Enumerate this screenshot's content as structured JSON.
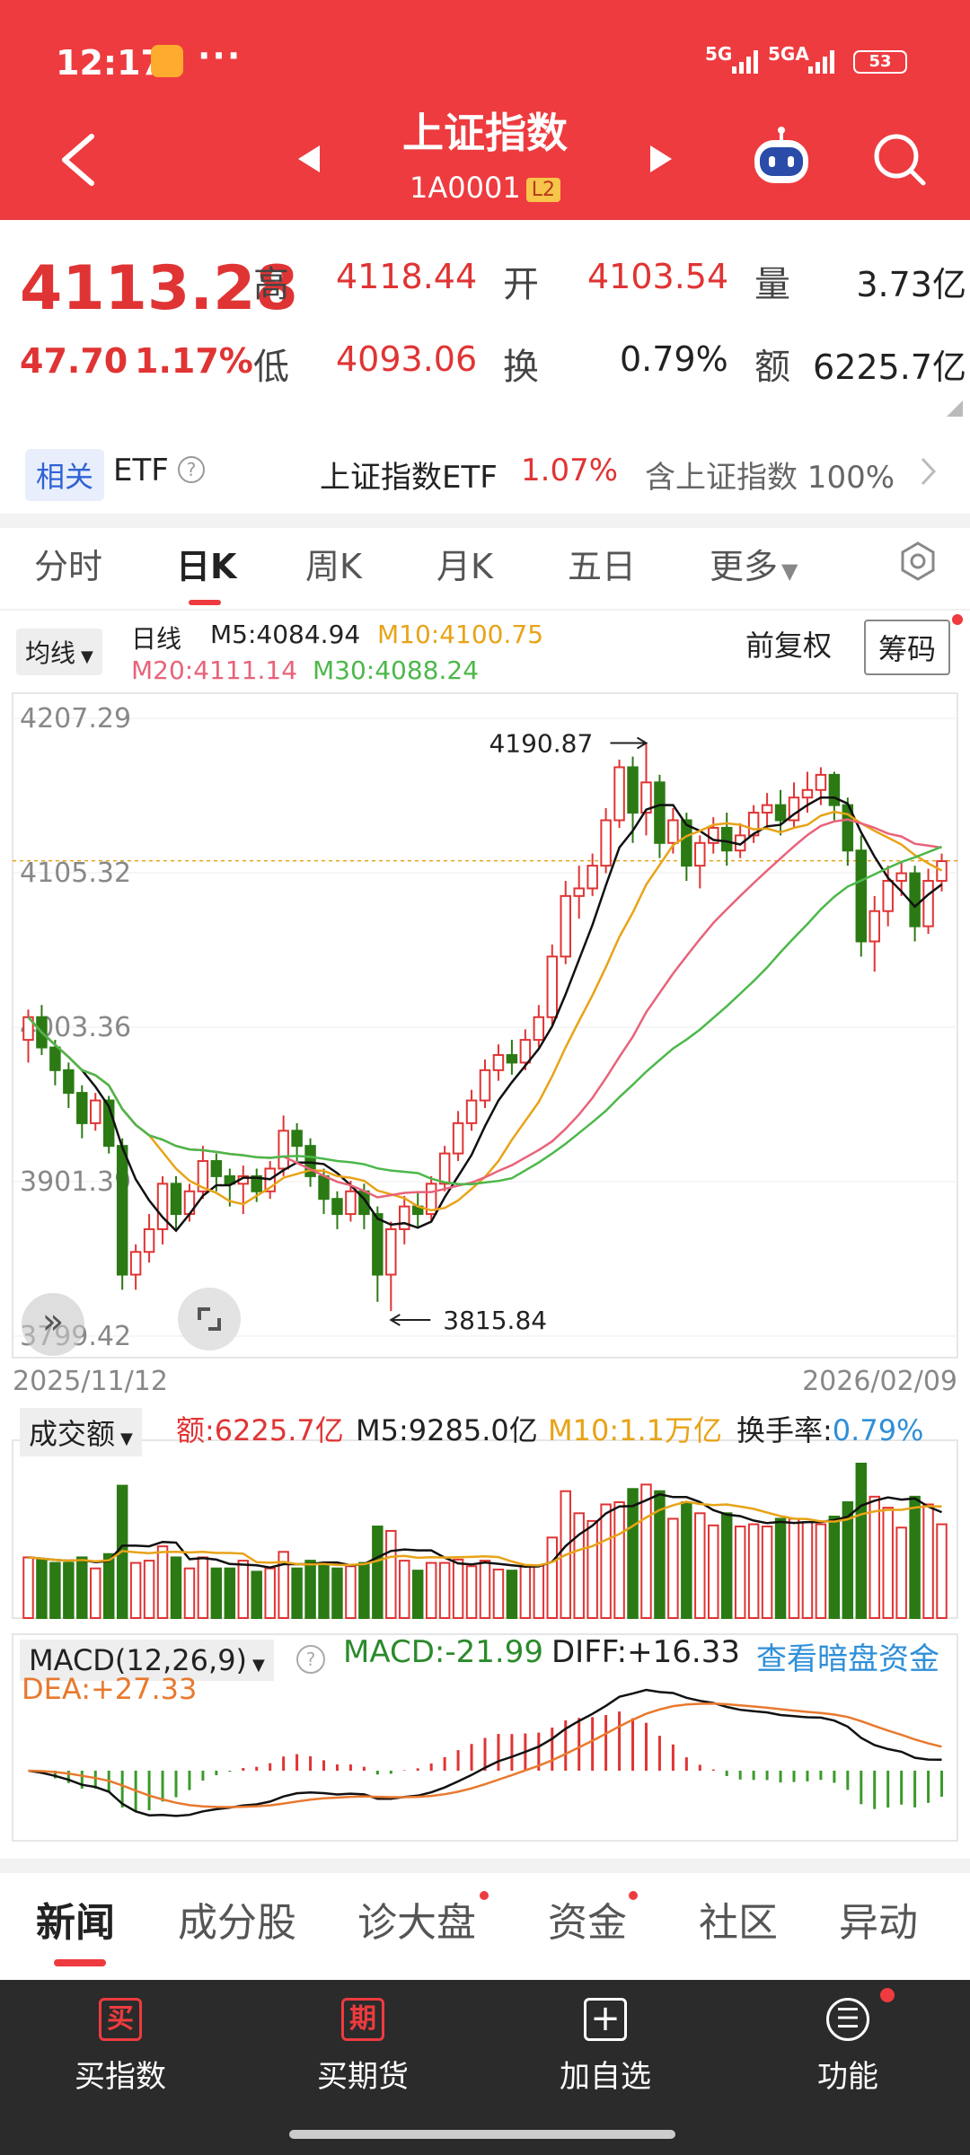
{
  "status": {
    "time": "12:17",
    "dots": "···",
    "net1": "5G",
    "net2": "5GA",
    "battery": "53"
  },
  "header": {
    "title": "上证指数",
    "code": "1A0001",
    "level": "L2"
  },
  "quote": {
    "price": "4113.28",
    "change": "47.70",
    "pct": "1.17%",
    "high_label": "高",
    "high": "4118.44",
    "open_label": "开",
    "open": "4103.54",
    "vol_label": "量",
    "vol": "3.73亿",
    "low_label": "低",
    "low": "4093.06",
    "turn_label": "换",
    "turn": "0.79%",
    "amt_label": "额",
    "amt": "6225.7亿"
  },
  "etf": {
    "tag": "相关",
    "label": "ETF",
    "help": "?",
    "name": "上证指数ETF",
    "pct": "1.07%",
    "contain": "含上证指数 100%"
  },
  "tabs": [
    "分时",
    "日K",
    "周K",
    "月K",
    "五日",
    "更多"
  ],
  "legend": {
    "avg_btn": "均线",
    "period": "日线",
    "m5": "M5:4084.94",
    "m10": "M10:4100.75",
    "m20": "M20:4111.14",
    "m30": "M30:4088.24",
    "adjust": "前复权",
    "chip": "筹码"
  },
  "chart_data": {
    "type": "candlestick",
    "y_ticks": [
      "4207.29",
      "4105.32",
      "4003.36",
      "3901.39",
      "3799.42"
    ],
    "x_start": "2025/11/12",
    "x_end": "2026/02/09",
    "annotations": {
      "high": "4190.87",
      "low": "3815.84"
    },
    "ylim": [
      3799.42,
      4207.29
    ],
    "candles": [
      [
        3995,
        4010,
        3980,
        4015,
        1
      ],
      [
        4010,
        3990,
        3985,
        4018,
        0
      ],
      [
        3990,
        3975,
        3965,
        3995,
        0
      ],
      [
        3975,
        3960,
        3950,
        3980,
        0
      ],
      [
        3960,
        3940,
        3930,
        3965,
        0
      ],
      [
        3940,
        3955,
        3935,
        3960,
        1
      ],
      [
        3955,
        3925,
        3920,
        3958,
        0
      ],
      [
        3925,
        3840,
        3830,
        3930,
        0
      ],
      [
        3840,
        3855,
        3830,
        3860,
        1
      ],
      [
        3855,
        3870,
        3848,
        3880,
        1
      ],
      [
        3870,
        3900,
        3860,
        3905,
        1
      ],
      [
        3900,
        3880,
        3870,
        3905,
        0
      ],
      [
        3880,
        3895,
        3875,
        3900,
        1
      ],
      [
        3895,
        3915,
        3890,
        3925,
        1
      ],
      [
        3915,
        3905,
        3895,
        3920,
        0
      ],
      [
        3905,
        3900,
        3885,
        3910,
        0
      ],
      [
        3900,
        3905,
        3880,
        3912,
        1
      ],
      [
        3905,
        3895,
        3888,
        3910,
        0
      ],
      [
        3895,
        3910,
        3890,
        3915,
        1
      ],
      [
        3910,
        3935,
        3905,
        3945,
        1
      ],
      [
        3935,
        3925,
        3915,
        3940,
        0
      ],
      [
        3925,
        3905,
        3898,
        3930,
        0
      ],
      [
        3905,
        3890,
        3880,
        3910,
        0
      ],
      [
        3890,
        3880,
        3870,
        3895,
        0
      ],
      [
        3880,
        3895,
        3875,
        3902,
        1
      ],
      [
        3895,
        3880,
        3870,
        3900,
        0
      ],
      [
        3880,
        3840,
        3822,
        3885,
        0
      ],
      [
        3840,
        3870,
        3816,
        3875,
        1
      ],
      [
        3870,
        3885,
        3860,
        3892,
        1
      ],
      [
        3885,
        3880,
        3872,
        3895,
        0
      ],
      [
        3880,
        3900,
        3875,
        3905,
        1
      ],
      [
        3900,
        3920,
        3895,
        3925,
        1
      ],
      [
        3920,
        3940,
        3915,
        3948,
        1
      ],
      [
        3940,
        3955,
        3935,
        3962,
        1
      ],
      [
        3955,
        3975,
        3950,
        3982,
        1
      ],
      [
        3975,
        3985,
        3968,
        3992,
        1
      ],
      [
        3985,
        3980,
        3972,
        3995,
        0
      ],
      [
        3980,
        3995,
        3975,
        4002,
        1
      ],
      [
        3995,
        4010,
        3990,
        4018,
        1
      ],
      [
        4010,
        4050,
        4005,
        4058,
        1
      ],
      [
        4050,
        4090,
        4045,
        4100,
        1
      ],
      [
        4090,
        4095,
        4075,
        4110,
        1
      ],
      [
        4095,
        4110,
        4090,
        4118,
        1
      ],
      [
        4110,
        4140,
        4105,
        4148,
        1
      ],
      [
        4140,
        4175,
        4135,
        4180,
        1
      ],
      [
        4175,
        4145,
        4125,
        4182,
        0
      ],
      [
        4145,
        4165,
        4130,
        4191,
        1
      ],
      [
        4165,
        4125,
        4115,
        4170,
        0
      ],
      [
        4125,
        4140,
        4118,
        4148,
        1
      ],
      [
        4140,
        4110,
        4100,
        4145,
        0
      ],
      [
        4110,
        4125,
        4095,
        4130,
        1
      ],
      [
        4125,
        4135,
        4118,
        4142,
        1
      ],
      [
        4135,
        4120,
        4110,
        4145,
        0
      ],
      [
        4120,
        4130,
        4115,
        4138,
        1
      ],
      [
        4130,
        4145,
        4125,
        4150,
        1
      ],
      [
        4145,
        4150,
        4135,
        4158,
        1
      ],
      [
        4150,
        4140,
        4130,
        4160,
        0
      ],
      [
        4140,
        4155,
        4135,
        4165,
        1
      ],
      [
        4155,
        4160,
        4145,
        4172,
        1
      ],
      [
        4160,
        4170,
        4150,
        4175,
        1
      ],
      [
        4170,
        4150,
        4140,
        4172,
        0
      ],
      [
        4150,
        4120,
        4110,
        4155,
        0
      ],
      [
        4120,
        4060,
        4050,
        4130,
        0
      ],
      [
        4060,
        4080,
        4040,
        4090,
        1
      ],
      [
        4080,
        4100,
        4070,
        4110,
        1
      ],
      [
        4100,
        4105,
        4090,
        4112,
        1
      ],
      [
        4105,
        4070,
        4060,
        4110,
        0
      ],
      [
        4070,
        4100,
        4065,
        4108,
        1
      ],
      [
        4100,
        4113,
        4093,
        4118,
        1
      ]
    ],
    "volume": {
      "label": "成交额",
      "amt": "额:6225.7亿",
      "m5": "M5:9285.0亿",
      "m10": "M10:1.1万亿",
      "turn_label": "换手率:",
      "turn": "0.79%"
    },
    "macd": {
      "label": "MACD(12,26,9)",
      "macd": "MACD:-21.99",
      "diff": "DIFF:+16.33",
      "dea": "DEA:+27.33",
      "link": "查看暗盘资金"
    },
    "colors": {
      "up": "#e03434",
      "down": "#2b7a14",
      "m5": "#111111",
      "m10": "#e8a317",
      "m20": "#e8637a",
      "m30": "#4cb84a"
    }
  },
  "news_tabs": [
    "新闻",
    "成分股",
    "诊大盘",
    "资金",
    "社区",
    "异动"
  ],
  "bottom": {
    "buy_icon": "买",
    "buy": "买指数",
    "fut_icon": "期",
    "fut": "买期货",
    "add_icon": "+",
    "add": "加自选",
    "func_icon": "☰",
    "func": "功能"
  }
}
